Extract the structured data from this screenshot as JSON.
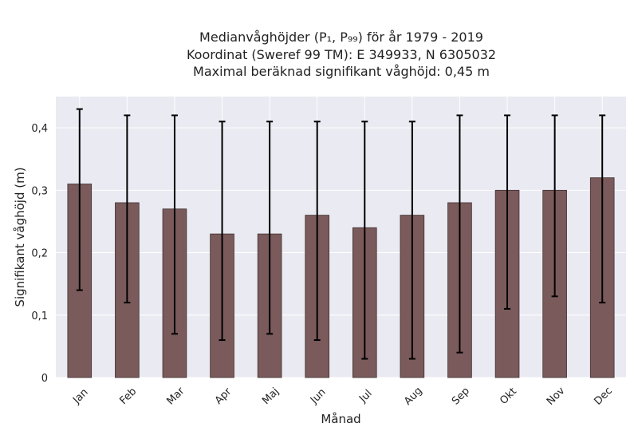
{
  "chart_data": {
    "type": "bar",
    "title_lines": [
      "Medianvåghöjder (P₁, P₉₉) för år 1979 - 2019",
      "Koordinat (Sweref 99 TM): E 349933, N 6305032",
      "Maximal beräknad signifikant våghöjd: 0,45 m"
    ],
    "xlabel": "Månad",
    "ylabel": "Signifikant våghöjd (m)",
    "categories": [
      "Jan",
      "Feb",
      "Mar",
      "Apr",
      "Maj",
      "Jun",
      "Jul",
      "Aug",
      "Sep",
      "Okt",
      "Nov",
      "Dec"
    ],
    "values": [
      0.31,
      0.28,
      0.27,
      0.23,
      0.23,
      0.26,
      0.24,
      0.26,
      0.28,
      0.3,
      0.3,
      0.32
    ],
    "error_low": [
      0.14,
      0.12,
      0.07,
      0.06,
      0.07,
      0.06,
      0.03,
      0.03,
      0.04,
      0.11,
      0.13,
      0.12
    ],
    "error_high": [
      0.43,
      0.42,
      0.42,
      0.41,
      0.41,
      0.41,
      0.41,
      0.41,
      0.42,
      0.42,
      0.42,
      0.42
    ],
    "ylim": [
      0,
      0.45
    ],
    "yticks": [
      0,
      0.1,
      0.2,
      0.3,
      0.4
    ],
    "ytick_labels": [
      "0",
      "0,1",
      "0,2",
      "0,3",
      "0,4"
    ],
    "grid": true,
    "colors": {
      "bar": "#7a5a5b",
      "bar_edge": "#3f3030",
      "plot_bg": "#eaeaf2",
      "grid": "#ffffff",
      "error": "#000000"
    }
  }
}
